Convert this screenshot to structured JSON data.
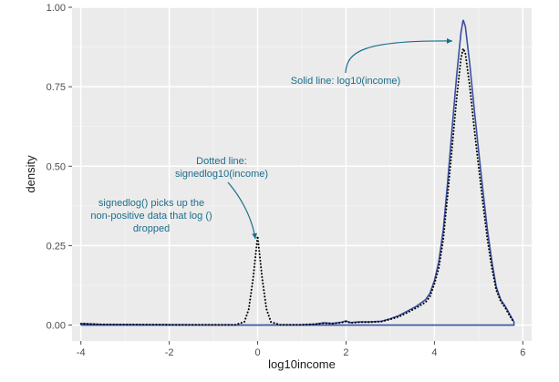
{
  "chart_data": {
    "type": "line",
    "xlabel": "log10income",
    "ylabel": "density",
    "xlim": [
      -4.2,
      6.2
    ],
    "ylim": [
      -0.05,
      1.0
    ],
    "x_ticks": [
      -4,
      -2,
      0,
      2,
      4,
      6
    ],
    "x_tick_labels": [
      "-4",
      "-2",
      "0",
      "2",
      "4",
      "6"
    ],
    "y_ticks": [
      0.0,
      0.25,
      0.5,
      0.75,
      1.0
    ],
    "y_tick_labels": [
      "0.00",
      "0.25",
      "0.50",
      "0.75",
      "1.00"
    ],
    "grid": true,
    "background": "#ebebeb",
    "series": [
      {
        "style": "solid",
        "color": "#3a4fa0",
        "points": [
          [
            -4,
            0.005
          ],
          [
            -3.5,
            0.002
          ],
          [
            -2,
            0.001
          ],
          [
            0,
            0.0
          ],
          [
            1,
            0.001
          ],
          [
            1.3,
            0.003
          ],
          [
            1.5,
            0.007
          ],
          [
            1.7,
            0.005
          ],
          [
            1.9,
            0.009
          ],
          [
            2.0,
            0.013
          ],
          [
            2.1,
            0.008
          ],
          [
            2.3,
            0.01
          ],
          [
            2.5,
            0.01
          ],
          [
            2.8,
            0.012
          ],
          [
            3.0,
            0.02
          ],
          [
            3.2,
            0.03
          ],
          [
            3.4,
            0.045
          ],
          [
            3.6,
            0.06
          ],
          [
            3.8,
            0.08
          ],
          [
            3.9,
            0.1
          ],
          [
            4.0,
            0.14
          ],
          [
            4.1,
            0.2
          ],
          [
            4.2,
            0.3
          ],
          [
            4.3,
            0.45
          ],
          [
            4.4,
            0.62
          ],
          [
            4.5,
            0.78
          ],
          [
            4.6,
            0.92
          ],
          [
            4.65,
            0.96
          ],
          [
            4.7,
            0.94
          ],
          [
            4.8,
            0.82
          ],
          [
            4.9,
            0.68
          ],
          [
            5.0,
            0.55
          ],
          [
            5.1,
            0.42
          ],
          [
            5.2,
            0.3
          ],
          [
            5.3,
            0.2
          ],
          [
            5.4,
            0.12
          ],
          [
            5.5,
            0.08
          ],
          [
            5.6,
            0.06
          ],
          [
            5.7,
            0.035
          ],
          [
            5.8,
            0.01
          ],
          [
            5.8,
            0.0
          ],
          [
            -4,
            0.0
          ]
        ]
      },
      {
        "style": "dotted",
        "color": "#000000",
        "points": [
          [
            -4,
            0.004
          ],
          [
            -3.5,
            0.002
          ],
          [
            -2,
            0.001
          ],
          [
            -0.5,
            0.001
          ],
          [
            -0.3,
            0.01
          ],
          [
            -0.2,
            0.05
          ],
          [
            -0.1,
            0.15
          ],
          [
            0,
            0.28
          ],
          [
            0.1,
            0.15
          ],
          [
            0.2,
            0.05
          ],
          [
            0.3,
            0.01
          ],
          [
            0.5,
            0.001
          ],
          [
            1,
            0.001
          ],
          [
            1.3,
            0.003
          ],
          [
            1.5,
            0.006
          ],
          [
            1.7,
            0.005
          ],
          [
            1.9,
            0.008
          ],
          [
            2.0,
            0.011
          ],
          [
            2.1,
            0.007
          ],
          [
            2.3,
            0.009
          ],
          [
            2.5,
            0.009
          ],
          [
            2.8,
            0.011
          ],
          [
            3.0,
            0.018
          ],
          [
            3.2,
            0.027
          ],
          [
            3.4,
            0.04
          ],
          [
            3.6,
            0.055
          ],
          [
            3.8,
            0.072
          ],
          [
            3.9,
            0.09
          ],
          [
            4.0,
            0.13
          ],
          [
            4.1,
            0.18
          ],
          [
            4.2,
            0.27
          ],
          [
            4.3,
            0.41
          ],
          [
            4.4,
            0.56
          ],
          [
            4.5,
            0.71
          ],
          [
            4.6,
            0.84
          ],
          [
            4.65,
            0.87
          ],
          [
            4.7,
            0.855
          ],
          [
            4.8,
            0.75
          ],
          [
            4.9,
            0.62
          ],
          [
            5.0,
            0.5
          ],
          [
            5.1,
            0.38
          ],
          [
            5.2,
            0.27
          ],
          [
            5.3,
            0.18
          ],
          [
            5.4,
            0.11
          ],
          [
            5.5,
            0.075
          ],
          [
            5.6,
            0.055
          ],
          [
            5.7,
            0.03
          ],
          [
            5.8,
            0.008
          ]
        ]
      }
    ],
    "annotations": [
      {
        "lines": [
          "Solid line: log10(income)"
        ],
        "color": "#1b6e8c"
      },
      {
        "lines": [
          "Dotted line:",
          "signedlog10(income)"
        ],
        "color": "#1b6e8c"
      },
      {
        "lines": [
          "signedlog() picks up the",
          "non-positive data that log ()",
          "dropped"
        ],
        "color": "#1b6e8c"
      }
    ]
  }
}
